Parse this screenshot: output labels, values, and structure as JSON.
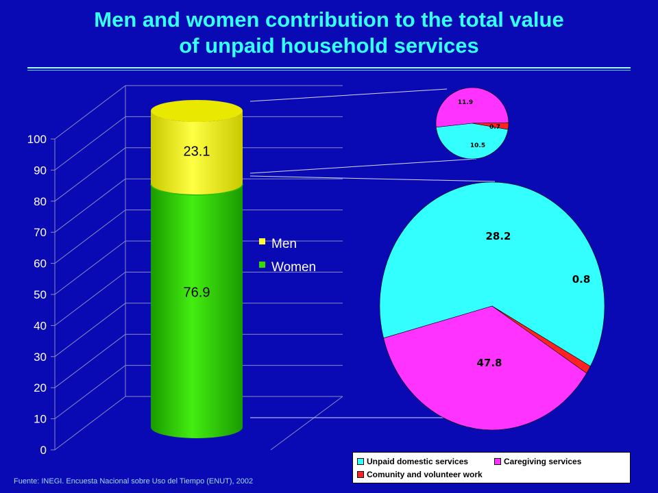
{
  "title_line1": "Men and women contribution to the total value",
  "title_line2": "of unpaid household services",
  "source": "Fuente: INEGI. Encuesta Nacional sobre Uso del Tiempo (ENUT), 2002",
  "colors": {
    "background": "#0a0ab4",
    "title": "#33ffff",
    "men": "#ffff33",
    "women": "#33dd00",
    "unpaid_domestic": "#33ffff",
    "caregiving": "#ff33ff",
    "community": "#ff2222"
  },
  "chart_data": [
    {
      "type": "bar",
      "title": "",
      "categories": [
        ""
      ],
      "series": [
        {
          "name": "Women",
          "values": [
            76.9
          ]
        },
        {
          "name": "Men",
          "values": [
            23.1
          ]
        }
      ],
      "stacked": true,
      "ylim": [
        0,
        100
      ],
      "yticks": [
        "0",
        "10",
        "20",
        "30",
        "40",
        "50",
        "60",
        "70",
        "80",
        "90",
        "100"
      ],
      "data_labels": [
        "76.9",
        "23.1"
      ],
      "legend": [
        "Men",
        "Women"
      ],
      "legend_position": "right",
      "grid": true
    },
    {
      "type": "pie",
      "title": "",
      "group": "Men",
      "slices": [
        {
          "label": "Unpaid domestic services",
          "value": 10.5,
          "text": "10.5"
        },
        {
          "label": "Caregiving services",
          "value": 11.9,
          "text": "11.9"
        },
        {
          "label": "Comunity and volunteer work",
          "value": 0.7,
          "text": "0.7"
        }
      ]
    },
    {
      "type": "pie",
      "title": "",
      "group": "Women",
      "slices": [
        {
          "label": "Unpaid domestic services",
          "value": 47.8,
          "text": "47.8"
        },
        {
          "label": "Caregiving services",
          "value": 28.2,
          "text": "28.2"
        },
        {
          "label": "Comunity and volunteer work",
          "value": 0.8,
          "text": "0.8"
        }
      ]
    }
  ],
  "legend_labels": {
    "unpaid": "Unpaid domestic services",
    "caregiving": "Caregiving services",
    "community": "Comunity and volunteer work"
  }
}
